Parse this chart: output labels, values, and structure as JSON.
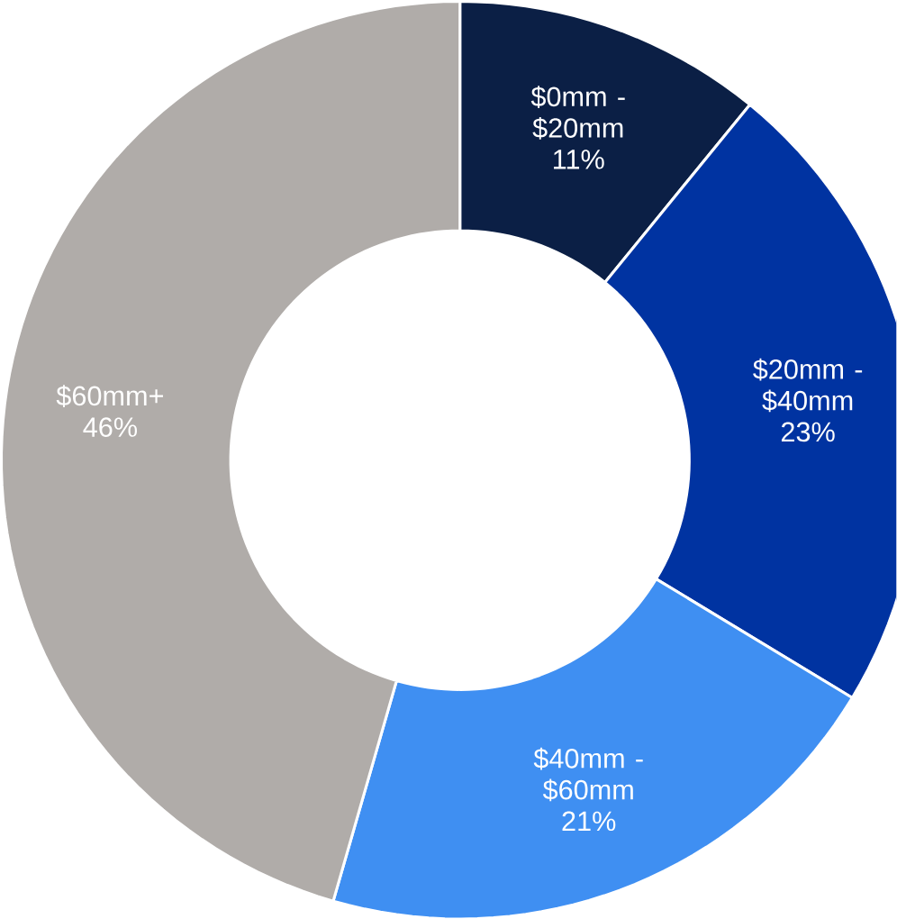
{
  "chart_data": {
    "type": "donut",
    "categories": [
      "$0mm - $20mm",
      "$20mm - $40mm",
      "$40mm - $60mm",
      "$60mm+"
    ],
    "values": [
      11,
      23,
      21,
      46
    ],
    "value_labels": [
      "11%",
      "23%",
      "21%",
      "46%"
    ],
    "colors": [
      "#0b1f45",
      "#0033a1",
      "#3f8ff2",
      "#b0aca9"
    ]
  }
}
